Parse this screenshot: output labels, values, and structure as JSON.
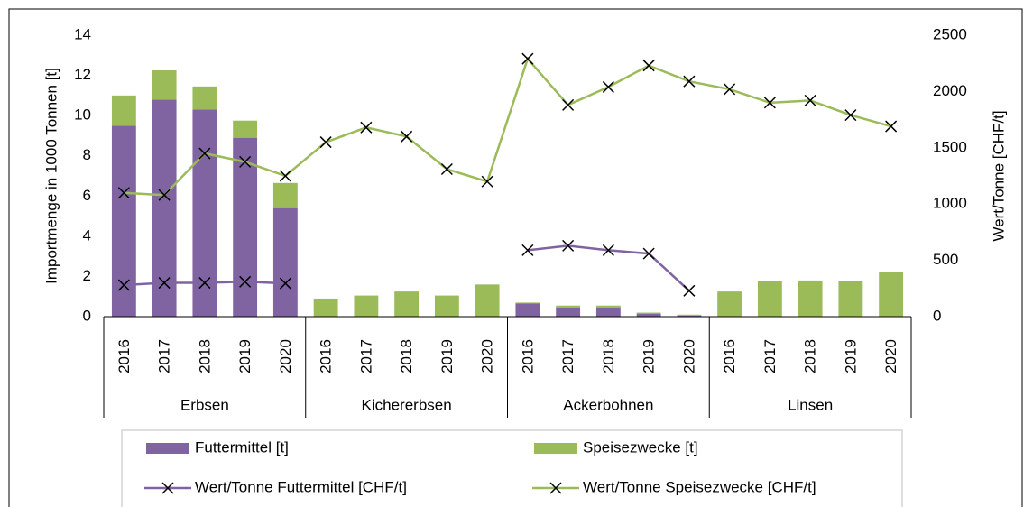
{
  "chart_data": {
    "type": "bar",
    "y_label": "Importmenge in 1000 Tonnen [t]",
    "y2_label": "Wert/Tonne [CHF/t]",
    "groups": [
      "Erbsen",
      "Kichererbsen",
      "Ackerbohnen",
      "Linsen"
    ],
    "categories": [
      "2016",
      "2017",
      "2018",
      "2019",
      "2020",
      "2016",
      "2017",
      "2018",
      "2019",
      "2020",
      "2016",
      "2017",
      "2018",
      "2019",
      "2020",
      "2016",
      "2017",
      "2018",
      "2019",
      "2020"
    ],
    "ylim": [
      0,
      14
    ],
    "yticks": [
      0,
      2,
      4,
      6,
      8,
      10,
      12,
      14
    ],
    "y2lim": [
      0,
      2500
    ],
    "y2ticks": [
      0,
      500,
      1000,
      1500,
      2000,
      2500
    ],
    "series": [
      {
        "name": "Futtermittel [t]",
        "type": "bar",
        "color": "#8064a2",
        "values": [
          9.5,
          10.8,
          10.3,
          8.9,
          5.4,
          0,
          0,
          0,
          0,
          0,
          0.65,
          0.45,
          0.45,
          0.15,
          0.05,
          0,
          0,
          0,
          0,
          0
        ]
      },
      {
        "name": "Speisezwecke [t]",
        "type": "bar",
        "color": "#9bbb59",
        "values": [
          1.5,
          1.45,
          1.15,
          0.85,
          1.25,
          0.9,
          1.05,
          1.25,
          1.05,
          1.6,
          0.05,
          0.1,
          0.1,
          0.05,
          0.05,
          1.25,
          1.75,
          1.8,
          1.75,
          2.2
        ]
      },
      {
        "name": "Wert/Tonne Futtermittel [CHF/t]",
        "type": "line",
        "axis": "y2",
        "color": "#8064a2",
        "values": [
          280,
          300,
          300,
          310,
          295,
          null,
          null,
          null,
          null,
          null,
          590,
          630,
          590,
          560,
          230,
          null,
          null,
          null,
          null,
          null
        ]
      },
      {
        "name": "Wert/Tonne Speisezwecke [CHF/t]",
        "type": "line",
        "axis": "y2",
        "color": "#9bbb59",
        "values": [
          1100,
          1080,
          1450,
          1375,
          1250,
          1550,
          1680,
          1600,
          1310,
          1200,
          2290,
          1880,
          2040,
          2230,
          2090,
          2020,
          1900,
          1920,
          1790,
          1690
        ]
      }
    ]
  }
}
